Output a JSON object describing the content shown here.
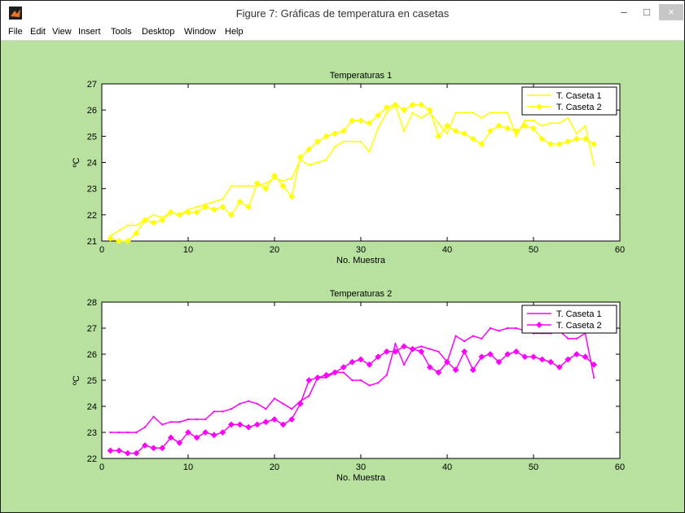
{
  "window": {
    "title": "Figure 7: Gráficas de temperatura en casetas",
    "controls": {
      "minimize": "–",
      "maximize": "□",
      "close": "×"
    }
  },
  "menu": [
    "File",
    "Edit",
    "View",
    "Insert",
    "Tools",
    "Desktop",
    "Window",
    "Help"
  ],
  "colors": {
    "figure_bg": "#b8e19f",
    "plot1_line": "#ffff00",
    "plot2_line": "#ff00ff"
  },
  "chart_data": [
    {
      "type": "line",
      "title": "Temperaturas 1",
      "xlabel": "No. Muestra",
      "ylabel": "ºC",
      "xlim": [
        0,
        60
      ],
      "ylim": [
        21,
        27
      ],
      "xticks": [
        0,
        10,
        20,
        30,
        40,
        50,
        60
      ],
      "yticks": [
        21,
        22,
        23,
        24,
        25,
        26,
        27
      ],
      "legend_position": "top-right",
      "x": [
        1,
        2,
        3,
        4,
        5,
        6,
        7,
        8,
        9,
        10,
        11,
        12,
        13,
        14,
        15,
        16,
        17,
        18,
        19,
        20,
        21,
        22,
        23,
        24,
        25,
        26,
        27,
        28,
        29,
        30,
        31,
        32,
        33,
        34,
        35,
        36,
        37,
        38,
        39,
        40,
        41,
        42,
        43,
        44,
        45,
        46,
        47,
        48,
        49,
        50,
        51,
        52,
        53,
        54,
        55,
        56,
        57
      ],
      "series": [
        {
          "name": "T. Caseta 1",
          "marker": "none",
          "values": [
            21.2,
            21.4,
            21.6,
            21.6,
            21.8,
            22.0,
            21.9,
            22.1,
            22.0,
            22.2,
            22.3,
            22.4,
            22.5,
            22.6,
            23.1,
            23.1,
            23.1,
            23.1,
            23.2,
            23.4,
            23.3,
            23.4,
            24.1,
            23.9,
            24.0,
            24.1,
            24.6,
            24.8,
            24.8,
            24.8,
            24.4,
            25.3,
            25.9,
            26.2,
            25.2,
            25.9,
            25.7,
            25.9,
            25.5,
            25.1,
            25.9,
            25.9,
            25.9,
            25.7,
            25.9,
            25.9,
            25.9,
            25.0,
            25.6,
            25.6,
            25.4,
            25.5,
            25.5,
            25.7,
            25.1,
            25.4,
            23.9
          ]
        },
        {
          "name": "T. Caseta 2",
          "marker": "diamond",
          "values": [
            21.1,
            21.0,
            21.0,
            21.3,
            21.8,
            21.7,
            21.8,
            22.1,
            22.0,
            22.1,
            22.1,
            22.3,
            22.2,
            22.3,
            22.0,
            22.5,
            22.3,
            23.2,
            23.0,
            23.5,
            23.1,
            22.7,
            24.2,
            24.5,
            24.8,
            25.0,
            25.1,
            25.2,
            25.6,
            25.6,
            25.5,
            25.8,
            26.1,
            26.2,
            26.0,
            26.2,
            26.2,
            26.0,
            25.0,
            25.4,
            25.2,
            25.1,
            24.9,
            24.7,
            25.2,
            25.4,
            25.3,
            25.2,
            25.4,
            25.3,
            24.9,
            24.7,
            24.7,
            24.8,
            24.9,
            24.9,
            24.7
          ]
        }
      ]
    },
    {
      "type": "line",
      "title": "Temperaturas 2",
      "xlabel": "No. Muestra",
      "ylabel": "ºC",
      "xlim": [
        0,
        60
      ],
      "ylim": [
        22,
        28
      ],
      "xticks": [
        0,
        10,
        20,
        30,
        40,
        50,
        60
      ],
      "yticks": [
        22,
        23,
        24,
        25,
        26,
        27,
        28
      ],
      "legend_position": "top-right",
      "x": [
        1,
        2,
        3,
        4,
        5,
        6,
        7,
        8,
        9,
        10,
        11,
        12,
        13,
        14,
        15,
        16,
        17,
        18,
        19,
        20,
        21,
        22,
        23,
        24,
        25,
        26,
        27,
        28,
        29,
        30,
        31,
        32,
        33,
        34,
        35,
        36,
        37,
        38,
        39,
        40,
        41,
        42,
        43,
        44,
        45,
        46,
        47,
        48,
        49,
        50,
        51,
        52,
        53,
        54,
        55,
        56,
        57
      ],
      "series": [
        {
          "name": "T. Caseta 1",
          "marker": "none",
          "values": [
            23.0,
            23.0,
            23.0,
            23.0,
            23.2,
            23.6,
            23.3,
            23.4,
            23.4,
            23.5,
            23.5,
            23.5,
            23.8,
            23.8,
            23.9,
            24.1,
            24.2,
            24.1,
            23.9,
            24.3,
            24.1,
            23.9,
            24.2,
            24.4,
            25.1,
            25.1,
            25.3,
            25.3,
            25.0,
            25.0,
            24.8,
            24.9,
            25.2,
            26.4,
            25.6,
            26.2,
            26.3,
            26.2,
            26.1,
            25.7,
            26.7,
            26.5,
            26.7,
            26.6,
            27.0,
            26.9,
            27.0,
            27.0,
            26.9,
            26.8,
            26.8,
            26.8,
            26.9,
            26.6,
            26.6,
            26.8,
            25.1
          ]
        },
        {
          "name": "T. Caseta 2",
          "marker": "diamond",
          "values": [
            22.3,
            22.3,
            22.2,
            22.2,
            22.5,
            22.4,
            22.4,
            22.8,
            22.6,
            23.0,
            22.8,
            23.0,
            22.9,
            23.0,
            23.3,
            23.3,
            23.2,
            23.3,
            23.4,
            23.5,
            23.3,
            23.5,
            24.1,
            25.0,
            25.1,
            25.2,
            25.3,
            25.5,
            25.7,
            25.8,
            25.6,
            25.9,
            26.1,
            26.1,
            26.3,
            26.2,
            26.1,
            25.5,
            25.3,
            25.7,
            25.4,
            26.1,
            25.4,
            25.9,
            26.0,
            25.7,
            26.0,
            26.1,
            25.9,
            25.9,
            25.8,
            25.7,
            25.5,
            25.8,
            26.0,
            25.9,
            25.6
          ]
        }
      ]
    }
  ]
}
